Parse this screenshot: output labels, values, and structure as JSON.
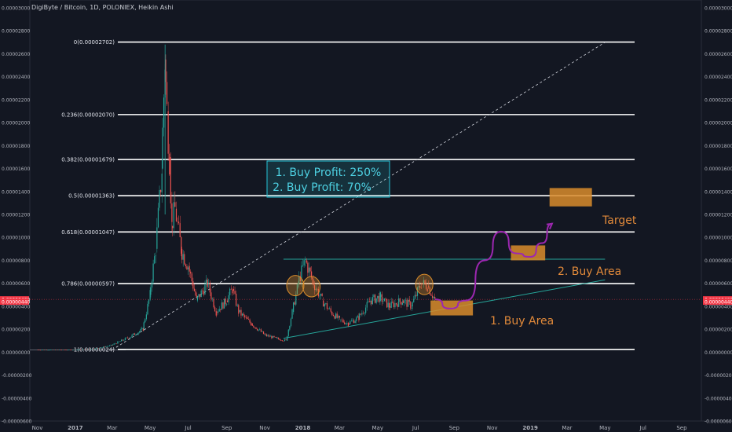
{
  "header": {
    "title": "DigiByte / Bitcoin, 1D, POLONIEX, Heikin Ashi"
  },
  "colors": {
    "background": "#131722",
    "fib_line": "#ffffff",
    "candle_up": "#26a69a",
    "candle_down": "#ef5350",
    "trendline": "#26a69a",
    "projection": "#9c27b0",
    "buy_box": "#d98c2b",
    "label_orange": "#e28a3a",
    "profit_box": "#26c6da",
    "current_price": "#f23645"
  },
  "chart_data": {
    "type": "candlestick",
    "y_axis": {
      "range": [
        -6e-06,
        3e-05
      ],
      "tick_labels": [
        "0.00003000",
        "0.00002800",
        "0.00002600",
        "0.00002400",
        "0.00002200",
        "0.00002000",
        "0.00001800",
        "0.00001600",
        "0.00001400",
        "0.00001200",
        "0.00001000",
        "0.00000800",
        "0.00000600",
        "0.00000400",
        "0.00000200",
        "0.00000000",
        "-0.00000200",
        "-0.00000400",
        "-0.00000600"
      ],
      "current_price_labels": [
        "0.00000460",
        "0.00000440"
      ]
    },
    "x_axis": {
      "tick_labels": [
        "Nov",
        "2017",
        "Mar",
        "May",
        "Jul",
        "Sep",
        "Nov",
        "2018",
        "Mar",
        "May",
        "Jul",
        "Sep",
        "Nov",
        "2019",
        "Mar",
        "May",
        "Jul",
        "Sep"
      ]
    },
    "fib_levels": [
      {
        "label": "0(0.00002702)",
        "value": 2.702e-05
      },
      {
        "label": "0.236(0.00002070)",
        "value": 2.07e-05
      },
      {
        "label": "0.382(0.00001679)",
        "value": 1.679e-05
      },
      {
        "label": "0.5(0.00001363)",
        "value": 1.363e-05
      },
      {
        "label": "0.618(0.00001047)",
        "value": 1.047e-05
      },
      {
        "label": "0.786(0.00000597)",
        "value": 5.97e-06
      },
      {
        "label": "1(0.00000024)",
        "value": 2.4e-07
      }
    ],
    "price_path": [
      [
        "2016-11-01",
        2e-07
      ],
      [
        "2017-01-01",
        2e-07
      ],
      [
        "2017-02-01",
        3e-07
      ],
      [
        "2017-03-01",
        6e-07
      ],
      [
        "2017-04-01",
        1.4e-06
      ],
      [
        "2017-04-20",
        2e-06
      ],
      [
        "2017-05-01",
        5e-06
      ],
      [
        "2017-05-10",
        9e-06
      ],
      [
        "2017-05-20",
        1.6e-05
      ],
      [
        "2017-05-25",
        2.55e-05
      ],
      [
        "2017-05-28",
        2.1e-05
      ],
      [
        "2017-06-01",
        1.7e-05
      ],
      [
        "2017-06-05",
        1.1e-05
      ],
      [
        "2017-06-10",
        1.25e-05
      ],
      [
        "2017-06-20",
        9e-06
      ],
      [
        "2017-07-01",
        7.5e-06
      ],
      [
        "2017-07-15",
        4.5e-06
      ],
      [
        "2017-08-01",
        6e-06
      ],
      [
        "2017-08-15",
        3.5e-06
      ],
      [
        "2017-09-01",
        4.5e-06
      ],
      [
        "2017-09-10",
        5.5e-06
      ],
      [
        "2017-09-20",
        3.5e-06
      ],
      [
        "2017-10-10",
        2.5e-06
      ],
      [
        "2017-11-01",
        1.5e-06
      ],
      [
        "2017-11-20",
        1.2e-06
      ],
      [
        "2017-12-05",
        1e-06
      ],
      [
        "2017-12-15",
        3.5e-06
      ],
      [
        "2017-12-25",
        6e-06
      ],
      [
        "2018-01-05",
        8e-06
      ],
      [
        "2018-01-15",
        6.5e-06
      ],
      [
        "2018-02-01",
        4.5e-06
      ],
      [
        "2018-02-15",
        3.5e-06
      ],
      [
        "2018-03-01",
        2.8e-06
      ],
      [
        "2018-03-15",
        2.5e-06
      ],
      [
        "2018-04-01",
        3e-06
      ],
      [
        "2018-04-20",
        4.5e-06
      ],
      [
        "2018-05-05",
        4.8e-06
      ],
      [
        "2018-05-20",
        4e-06
      ],
      [
        "2018-06-10",
        4.5e-06
      ],
      [
        "2018-06-25",
        4e-06
      ],
      [
        "2018-07-10",
        6e-06
      ],
      [
        "2018-07-20",
        5.8e-06
      ],
      [
        "2018-08-01",
        4.6e-06
      ]
    ],
    "trendlines": [
      {
        "name": "support",
        "from": [
          "2017-12-01",
          1.2e-06
        ],
        "to": [
          "2019-05-01",
          6.3e-06
        ]
      },
      {
        "name": "resistance",
        "from": [
          "2017-12-01",
          8.1e-06
        ],
        "to": [
          "2019-05-01",
          8.1e-06
        ]
      },
      {
        "name": "diagonal",
        "style": "dashed",
        "from": [
          "2017-03-01",
          2e-07
        ],
        "to": [
          "2019-05-01",
          2.7e-05
        ]
      }
    ],
    "projection": [
      [
        "2018-08-01",
        4.6e-06
      ],
      [
        "2018-08-25",
        3.8e-06
      ],
      [
        "2018-09-20",
        4.5e-06
      ],
      [
        "2018-10-20",
        8e-06
      ],
      [
        "2018-11-15",
        1.05e-05
      ],
      [
        "2018-12-10",
        8.6e-06
      ],
      [
        "2019-01-01",
        8.3e-06
      ],
      [
        "2019-01-20",
        9.5e-06
      ],
      [
        "2019-02-05",
        1.12e-05
      ]
    ],
    "zones": [
      {
        "name": "buy_area_1",
        "x": [
          "2018-07-25",
          "2018-10-01"
        ],
        "y": [
          3.2e-06,
          4.5e-06
        ]
      },
      {
        "name": "buy_area_2",
        "x": [
          "2018-12-01",
          "2019-01-25"
        ],
        "y": [
          8e-06,
          9.3e-06
        ]
      },
      {
        "name": "target",
        "x": [
          "2019-02-01",
          "2019-04-10"
        ],
        "y": [
          1.27e-05,
          1.43e-05
        ]
      }
    ],
    "circles": [
      {
        "x": "2017-12-20",
        "y": 5.8e-06
      },
      {
        "x": "2018-01-15",
        "y": 5.7e-06
      },
      {
        "x": "2018-07-15",
        "y": 5.9e-06
      }
    ]
  },
  "annotations": {
    "profit_line_1": "1. Buy Profit: 250%",
    "profit_line_2": "2. Buy Profit: 70%",
    "buy_area_1": "1. Buy Area",
    "buy_area_2": "2. Buy Area",
    "target": "Target"
  }
}
